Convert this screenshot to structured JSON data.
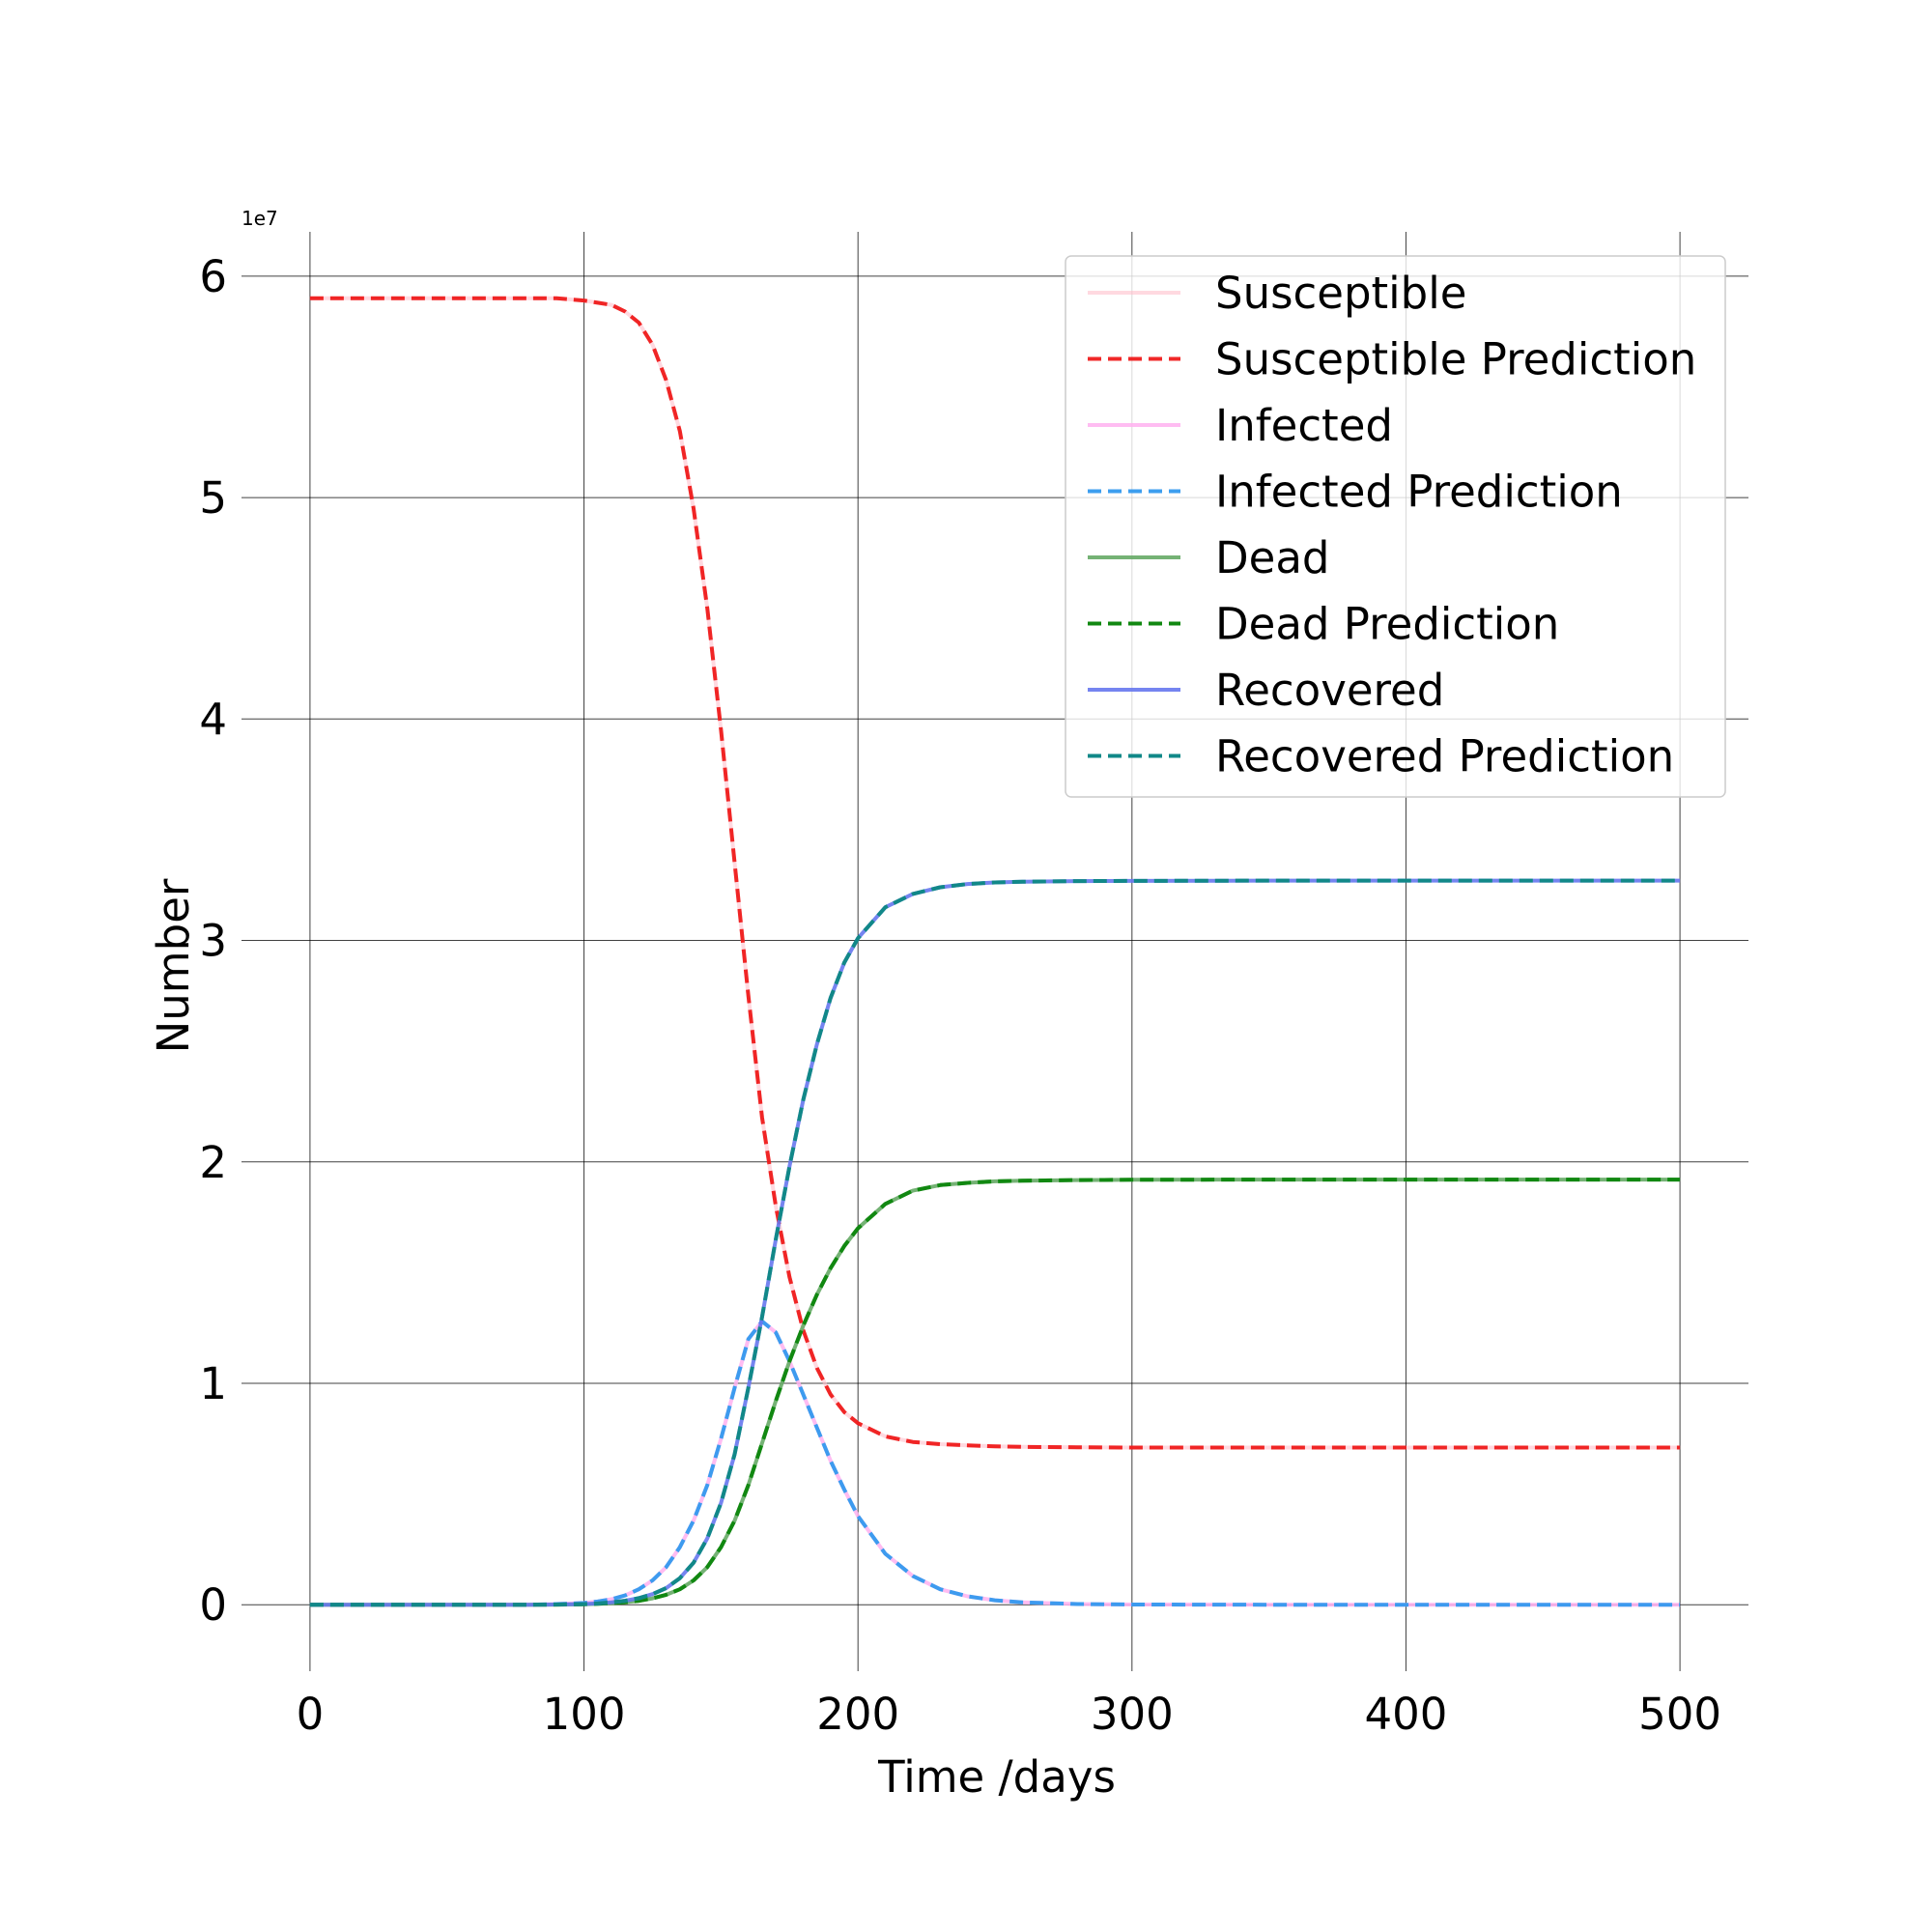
{
  "chart_data": {
    "type": "line",
    "title": "",
    "xlabel": "Time /days",
    "ylabel": "Number",
    "y_multiplier_label": "1e7",
    "y_multiplier": 10000000,
    "xlim": [
      -25,
      525
    ],
    "ylim": [
      -3000000,
      62000000
    ],
    "x_ticks": [
      0,
      100,
      200,
      300,
      400,
      500
    ],
    "x_tick_labels": [
      "0",
      "100",
      "200",
      "300",
      "400",
      "500"
    ],
    "y_ticks": [
      0,
      10000000,
      20000000,
      30000000,
      40000000,
      50000000,
      60000000
    ],
    "y_tick_labels": [
      "0",
      "1",
      "2",
      "3",
      "4",
      "5",
      "6"
    ],
    "grid": true,
    "legend_position": "top-right",
    "x": [
      0,
      20,
      40,
      60,
      80,
      90,
      100,
      105,
      110,
      115,
      120,
      125,
      130,
      135,
      140,
      145,
      150,
      155,
      160,
      165,
      170,
      175,
      180,
      185,
      190,
      195,
      200,
      210,
      220,
      230,
      240,
      250,
      260,
      280,
      300,
      350,
      400,
      450,
      500
    ],
    "series": [
      {
        "name": "Susceptible",
        "color": "#ffc0cb",
        "dash": "solid",
        "opacity": 0.6,
        "width": 4,
        "values": [
          59000000,
          59000000,
          59000000,
          59000000,
          59000000,
          59000000,
          58900000,
          58800000,
          58700000,
          58400000,
          57900000,
          56900000,
          55300000,
          53000000,
          49500000,
          45000000,
          39500000,
          33500000,
          27500000,
          22000000,
          18000000,
          14800000,
          12400000,
          10700000,
          9500000,
          8700000,
          8200000,
          7600000,
          7350000,
          7250000,
          7200000,
          7150000,
          7130000,
          7110000,
          7100000,
          7100000,
          7100000,
          7100000,
          7100000
        ]
      },
      {
        "name": "Susceptible Prediction",
        "color": "#ee1111",
        "dash": "dashed",
        "opacity": 0.9,
        "width": 4,
        "values": [
          59000000,
          59000000,
          59000000,
          59000000,
          59000000,
          59000000,
          58900000,
          58800000,
          58700000,
          58400000,
          57900000,
          56900000,
          55300000,
          53000000,
          49500000,
          45000000,
          39500000,
          33500000,
          27500000,
          22000000,
          18000000,
          14800000,
          12400000,
          10700000,
          9500000,
          8700000,
          8200000,
          7600000,
          7350000,
          7250000,
          7200000,
          7150000,
          7130000,
          7110000,
          7100000,
          7100000,
          7100000,
          7100000,
          7100000
        ]
      },
      {
        "name": "Infected",
        "color": "#ffb0f0",
        "dash": "solid",
        "opacity": 0.85,
        "width": 4,
        "values": [
          0,
          0,
          0,
          0,
          0,
          30000,
          80000,
          150000,
          250000,
          420000,
          700000,
          1100000,
          1700000,
          2600000,
          3800000,
          5400000,
          7500000,
          9800000,
          12000000,
          12800000,
          12300000,
          11000000,
          9500000,
          8000000,
          6500000,
          5200000,
          4000000,
          2300000,
          1300000,
          700000,
          380000,
          200000,
          110000,
          30000,
          10000,
          0,
          0,
          0,
          0
        ]
      },
      {
        "name": "Infected Prediction",
        "color": "#3399ee",
        "dash": "dashed",
        "opacity": 0.95,
        "width": 4,
        "values": [
          0,
          0,
          0,
          0,
          0,
          30000,
          80000,
          150000,
          250000,
          420000,
          700000,
          1100000,
          1700000,
          2600000,
          3800000,
          5400000,
          7500000,
          9800000,
          12000000,
          12800000,
          12300000,
          11000000,
          9500000,
          8000000,
          6500000,
          5200000,
          4000000,
          2300000,
          1300000,
          700000,
          380000,
          200000,
          110000,
          30000,
          10000,
          0,
          0,
          0,
          0
        ]
      },
      {
        "name": "Dead",
        "color": "#66aa66",
        "dash": "solid",
        "opacity": 0.9,
        "width": 4,
        "values": [
          0,
          0,
          0,
          0,
          0,
          5000,
          20000,
          40000,
          70000,
          110000,
          180000,
          290000,
          450000,
          700000,
          1100000,
          1700000,
          2600000,
          3800000,
          5400000,
          7300000,
          9200000,
          11000000,
          12600000,
          14000000,
          15200000,
          16200000,
          17000000,
          18100000,
          18700000,
          18950000,
          19050000,
          19120000,
          19150000,
          19180000,
          19190000,
          19200000,
          19200000,
          19200000,
          19200000
        ]
      },
      {
        "name": "Dead Prediction",
        "color": "#118811",
        "dash": "dashed",
        "opacity": 1,
        "width": 4,
        "values": [
          0,
          0,
          0,
          0,
          0,
          5000,
          20000,
          40000,
          70000,
          110000,
          180000,
          290000,
          450000,
          700000,
          1100000,
          1700000,
          2600000,
          3800000,
          5400000,
          7300000,
          9200000,
          11000000,
          12600000,
          14000000,
          15200000,
          16200000,
          17000000,
          18100000,
          18700000,
          18950000,
          19050000,
          19120000,
          19150000,
          19180000,
          19190000,
          19200000,
          19200000,
          19200000,
          19200000
        ]
      },
      {
        "name": "Recovered",
        "color": "#6677ee",
        "dash": "solid",
        "opacity": 0.9,
        "width": 4,
        "values": [
          0,
          0,
          0,
          0,
          0,
          8000,
          30000,
          60000,
          110000,
          180000,
          300000,
          480000,
          750000,
          1200000,
          1900000,
          3000000,
          4600000,
          6800000,
          9800000,
          13000000,
          16500000,
          19800000,
          22800000,
          25300000,
          27400000,
          29000000,
          30100000,
          31500000,
          32100000,
          32400000,
          32550000,
          32620000,
          32650000,
          32680000,
          32690000,
          32700000,
          32700000,
          32700000,
          32700000
        ]
      },
      {
        "name": "Recovered Prediction",
        "color": "#118888",
        "dash": "dashed",
        "opacity": 1,
        "width": 4,
        "values": [
          0,
          0,
          0,
          0,
          0,
          8000,
          30000,
          60000,
          110000,
          180000,
          300000,
          480000,
          750000,
          1200000,
          1900000,
          3000000,
          4600000,
          6800000,
          9800000,
          13000000,
          16500000,
          19800000,
          22800000,
          25300000,
          27400000,
          29000000,
          30100000,
          31500000,
          32100000,
          32400000,
          32550000,
          32620000,
          32650000,
          32680000,
          32690000,
          32700000,
          32700000,
          32700000,
          32700000
        ]
      }
    ]
  }
}
